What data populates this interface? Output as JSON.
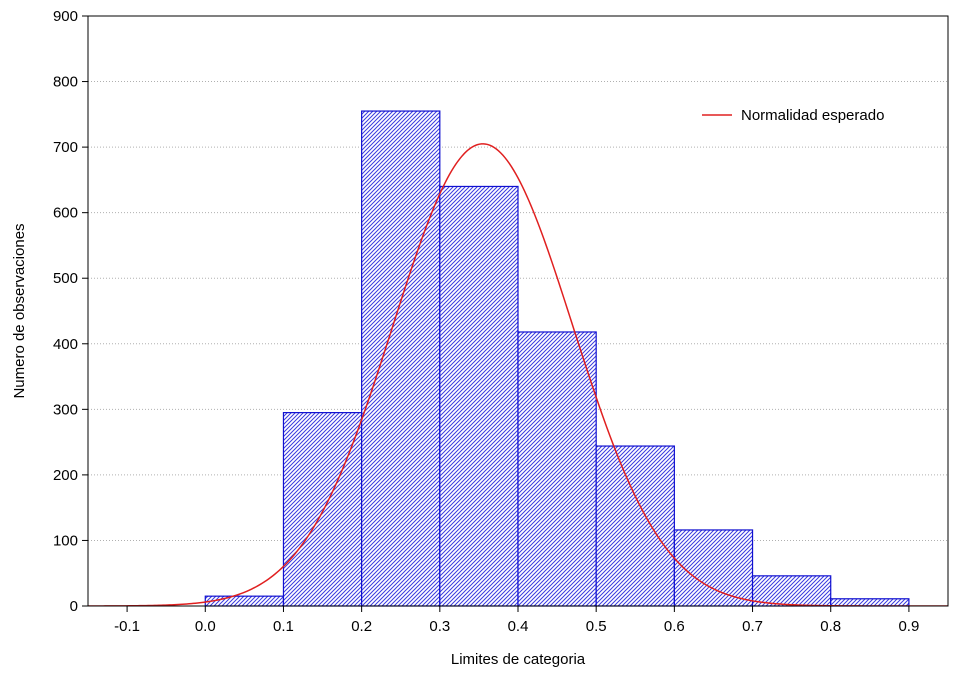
{
  "chart_data": {
    "type": "bar",
    "subtype": "histogram",
    "title": "",
    "xlabel": "Limites de categoria",
    "ylabel": "Numero de observaciones",
    "xlim": [
      -0.15,
      0.95
    ],
    "ylim": [
      0,
      900
    ],
    "x_ticks": [
      "-0.1",
      "0.0",
      "0.1",
      "0.2",
      "0.3",
      "0.4",
      "0.5",
      "0.6",
      "0.7",
      "0.8",
      "0.9"
    ],
    "y_ticks": [
      "0",
      "100",
      "200",
      "300",
      "400",
      "500",
      "600",
      "700",
      "800",
      "900"
    ],
    "grid": "horizontal dotted",
    "bins": [
      {
        "start": 0.0,
        "end": 0.1,
        "value": 15
      },
      {
        "start": 0.1,
        "end": 0.2,
        "value": 295
      },
      {
        "start": 0.2,
        "end": 0.3,
        "value": 755
      },
      {
        "start": 0.3,
        "end": 0.4,
        "value": 640
      },
      {
        "start": 0.4,
        "end": 0.5,
        "value": 418
      },
      {
        "start": 0.5,
        "end": 0.6,
        "value": 244
      },
      {
        "start": 0.6,
        "end": 0.7,
        "value": 116
      },
      {
        "start": 0.7,
        "end": 0.8,
        "value": 46
      },
      {
        "start": 0.8,
        "end": 0.9,
        "value": 11
      }
    ],
    "curve": {
      "name": "Normalidad esperado",
      "type": "normal",
      "mean": 0.355,
      "sd": 0.115,
      "peak": 705
    },
    "legend": {
      "position": "top-right",
      "entries": [
        "Normalidad esperado"
      ]
    },
    "colors": {
      "bar_stroke": "#1010d0",
      "bar_hatch": "#3a3ae0",
      "curve": "#e02020",
      "grid": "#b0b0b0"
    }
  }
}
